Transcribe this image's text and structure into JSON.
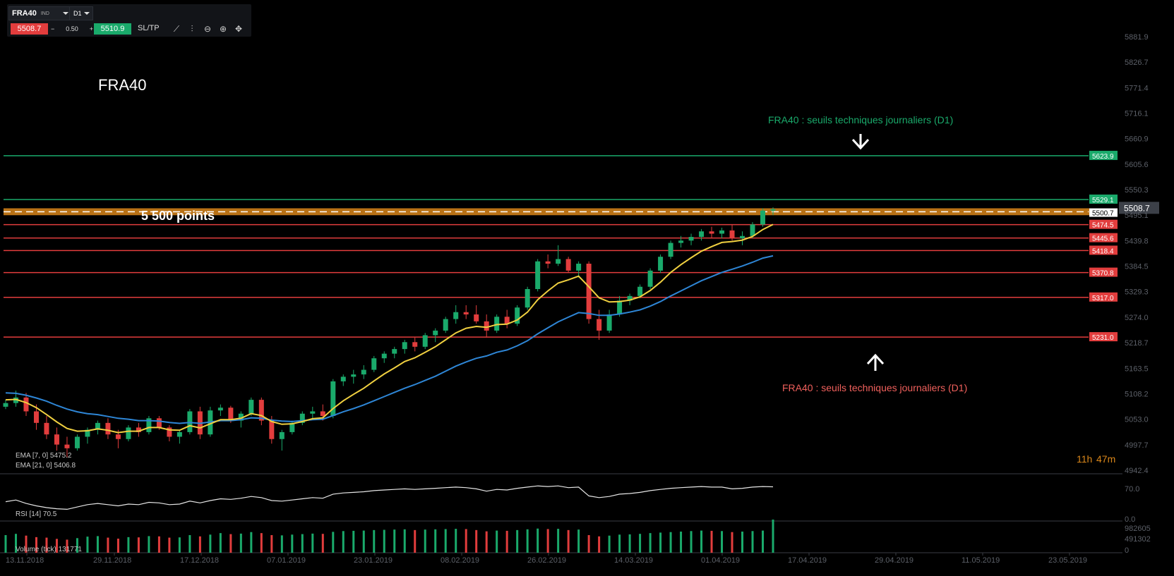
{
  "toolbar": {
    "symbol": "FRA40",
    "symbol_tag": "IND",
    "timeframe": "D1",
    "bid": "5508.7",
    "minus": "−",
    "lot": "0.50",
    "plus": "+",
    "ask": "5510.9",
    "sltp": "SL/TP",
    "icons": [
      "line-chart-icon",
      "candle-type-icon",
      "zoom-out-icon",
      "zoom-in-icon",
      "crosshair-icon"
    ]
  },
  "chart_title": "FRA40",
  "annotations": {
    "top_label": "FRA40 : seuils techniques journaliers (D1)",
    "bottom_label": "FRA40 : seuils techniques journaliers (D1)",
    "band_label": "5 500 points",
    "countdown_hours": "11h",
    "countdown_minutes": "47m",
    "colors": {
      "green": "#1aaa6b",
      "red": "#e23d3d",
      "orange": "#d9861a",
      "ema7": "#f0d040",
      "ema21": "#2e86d6"
    }
  },
  "indicators": {
    "ema7": "EMA [7, 0] 5475.2",
    "ema21": "EMA [21, 0] 5406.8",
    "rsi": "RSI [14] 70.5",
    "volume": "Volume (tick) 131771"
  },
  "chart_data": {
    "type": "candlestick",
    "price_axis": {
      "ticks": [
        "5881.9",
        "5826.7",
        "5771.4",
        "5716.1",
        "5660.9",
        "5605.6",
        "5550.3",
        "5495.1",
        "5439.8",
        "5384.5",
        "5329.3",
        "5274.0",
        "5218.7",
        "5163.5",
        "5108.2",
        "5053.0",
        "4997.7",
        "4942.4"
      ],
      "range": [
        4942.4,
        5881.9
      ]
    },
    "current_price": "5508.7",
    "levels": [
      {
        "value": 5623.9,
        "label": "5623.9",
        "color": "green"
      },
      {
        "value": 5529.1,
        "label": "5529.1",
        "color": "green"
      },
      {
        "value": 5500.7,
        "label": "5500.7",
        "color": "white"
      },
      {
        "value": 5474.5,
        "label": "5474.5",
        "color": "red"
      },
      {
        "value": 5445.6,
        "label": "5445.6",
        "color": "red"
      },
      {
        "value": 5418.4,
        "label": "5418.4",
        "color": "red"
      },
      {
        "value": 5370.8,
        "label": "5370.8",
        "color": "red"
      },
      {
        "value": 5317.0,
        "label": "5317.0",
        "color": "red"
      },
      {
        "value": 5231.0,
        "label": "5231.0",
        "color": "red"
      }
    ],
    "band": [
      5495,
      5510
    ],
    "date_axis": [
      "13.11.2018",
      "29.11.2018",
      "17.12.2018",
      "07.01.2019",
      "23.01.2019",
      "08.02.2019",
      "26.02.2019",
      "14.03.2019",
      "01.04.2019",
      "17.04.2019",
      "29.04.2019",
      "11.05.2019",
      "23.05.2019"
    ],
    "rsi_axis": [
      "70.0",
      "0.0"
    ],
    "volume_axis": [
      "982605",
      "491302",
      "0"
    ],
    "candles": [
      [
        5080,
        5095,
        5075,
        5088
      ],
      [
        5088,
        5115,
        5080,
        5100
      ],
      [
        5100,
        5110,
        5060,
        5070
      ],
      [
        5070,
        5085,
        5030,
        5045
      ],
      [
        5045,
        5060,
        5010,
        5020
      ],
      [
        5020,
        5035,
        4985,
        4998
      ],
      [
        4998,
        5015,
        4970,
        4990
      ],
      [
        4990,
        5020,
        4985,
        5015
      ],
      [
        5015,
        5035,
        5000,
        5030
      ],
      [
        5030,
        5050,
        5020,
        5045
      ],
      [
        5045,
        5055,
        5010,
        5020
      ],
      [
        5020,
        5030,
        4990,
        5010
      ],
      [
        5010,
        5040,
        5005,
        5035
      ],
      [
        5035,
        5045,
        5015,
        5025
      ],
      [
        5025,
        5060,
        5020,
        5055
      ],
      [
        5055,
        5060,
        5030,
        5035
      ],
      [
        5035,
        5040,
        5005,
        5015
      ],
      [
        5015,
        5030,
        5000,
        5025
      ],
      [
        5025,
        5075,
        5020,
        5070
      ],
      [
        5070,
        5080,
        5010,
        5020
      ],
      [
        5020,
        5080,
        5015,
        5072
      ],
      [
        5072,
        5085,
        5060,
        5078
      ],
      [
        5078,
        5082,
        5045,
        5050
      ],
      [
        5050,
        5070,
        5035,
        5065
      ],
      [
        5065,
        5100,
        5060,
        5095
      ],
      [
        5095,
        5100,
        5040,
        5050
      ],
      [
        5050,
        5060,
        5000,
        5010
      ],
      [
        5010,
        5030,
        4985,
        5025
      ],
      [
        5025,
        5050,
        5020,
        5045
      ],
      [
        5045,
        5070,
        5040,
        5065
      ],
      [
        5065,
        5080,
        5055,
        5070
      ],
      [
        5070,
        5085,
        5050,
        5060
      ],
      [
        5060,
        5140,
        5055,
        5135
      ],
      [
        5135,
        5150,
        5125,
        5145
      ],
      [
        5145,
        5160,
        5130,
        5150
      ],
      [
        5150,
        5170,
        5140,
        5160
      ],
      [
        5160,
        5190,
        5155,
        5185
      ],
      [
        5185,
        5200,
        5175,
        5195
      ],
      [
        5195,
        5210,
        5185,
        5205
      ],
      [
        5205,
        5225,
        5195,
        5220
      ],
      [
        5220,
        5230,
        5200,
        5210
      ],
      [
        5210,
        5240,
        5205,
        5235
      ],
      [
        5235,
        5250,
        5220,
        5245
      ],
      [
        5245,
        5275,
        5240,
        5270
      ],
      [
        5270,
        5300,
        5260,
        5285
      ],
      [
        5285,
        5300,
        5270,
        5280
      ],
      [
        5280,
        5300,
        5260,
        5265
      ],
      [
        5265,
        5280,
        5230,
        5245
      ],
      [
        5245,
        5280,
        5240,
        5275
      ],
      [
        5275,
        5290,
        5250,
        5260
      ],
      [
        5260,
        5300,
        5255,
        5295
      ],
      [
        5295,
        5340,
        5290,
        5335
      ],
      [
        5335,
        5400,
        5330,
        5395
      ],
      [
        5395,
        5410,
        5380,
        5390
      ],
      [
        5390,
        5430,
        5385,
        5400
      ],
      [
        5400,
        5405,
        5370,
        5375
      ],
      [
        5375,
        5395,
        5360,
        5390
      ],
      [
        5390,
        5395,
        5260,
        5270
      ],
      [
        5270,
        5290,
        5225,
        5245
      ],
      [
        5245,
        5290,
        5240,
        5280
      ],
      [
        5280,
        5320,
        5275,
        5310
      ],
      [
        5310,
        5325,
        5300,
        5320
      ],
      [
        5320,
        5345,
        5315,
        5340
      ],
      [
        5340,
        5380,
        5335,
        5375
      ],
      [
        5375,
        5410,
        5370,
        5405
      ],
      [
        5405,
        5440,
        5400,
        5435
      ],
      [
        5435,
        5450,
        5425,
        5440
      ],
      [
        5440,
        5455,
        5430,
        5448
      ],
      [
        5448,
        5465,
        5440,
        5460
      ],
      [
        5460,
        5470,
        5445,
        5455
      ],
      [
        5455,
        5468,
        5445,
        5462
      ],
      [
        5462,
        5475,
        5440,
        5445
      ],
      [
        5445,
        5460,
        5430,
        5450
      ],
      [
        5450,
        5480,
        5445,
        5475
      ],
      [
        5475,
        5510,
        5470,
        5505
      ],
      [
        5505,
        5512,
        5495,
        5508
      ]
    ],
    "ema7": [
      5095,
      5096,
      5089,
      5078,
      5063,
      5047,
      5033,
      5027,
      5028,
      5032,
      5029,
      5024,
      5027,
      5027,
      5035,
      5035,
      5030,
      5029,
      5039,
      5034,
      5043,
      5052,
      5052,
      5055,
      5065,
      5061,
      5048,
      5042,
      5043,
      5048,
      5054,
      5056,
      5076,
      5093,
      5107,
      5120,
      5136,
      5151,
      5164,
      5178,
      5186,
      5198,
      5210,
      5225,
      5240,
      5250,
      5254,
      5252,
      5258,
      5259,
      5268,
      5285,
      5312,
      5331,
      5348,
      5355,
      5363,
      5340,
      5316,
      5307,
      5308,
      5311,
      5318,
      5332,
      5350,
      5371,
      5388,
      5403,
      5417,
      5427,
      5436,
      5438,
      5441,
      5449,
      5464,
      5475
    ],
    "ema21": [
      5110,
      5109,
      5105,
      5099,
      5092,
      5083,
      5075,
      5069,
      5065,
      5063,
      5059,
      5055,
      5053,
      5050,
      5050,
      5049,
      5046,
      5044,
      5046,
      5044,
      5047,
      5050,
      5050,
      5052,
      5056,
      5055,
      5051,
      5049,
      5048,
      5050,
      5052,
      5053,
      5061,
      5069,
      5076,
      5084,
      5093,
      5102,
      5111,
      5120,
      5128,
      5137,
      5146,
      5157,
      5168,
      5177,
      5185,
      5190,
      5198,
      5203,
      5212,
      5223,
      5238,
      5251,
      5264,
      5274,
      5284,
      5282,
      5278,
      5278,
      5281,
      5285,
      5290,
      5298,
      5308,
      5320,
      5331,
      5342,
      5353,
      5362,
      5371,
      5378,
      5385,
      5393,
      5402,
      5407
    ],
    "rsi": [
      45,
      48,
      42,
      38,
      35,
      33,
      32,
      36,
      40,
      42,
      40,
      38,
      41,
      40,
      44,
      43,
      40,
      41,
      46,
      43,
      47,
      50,
      49,
      51,
      54,
      52,
      47,
      46,
      48,
      50,
      52,
      51,
      58,
      60,
      61,
      62,
      64,
      65,
      66,
      67,
      66,
      67,
      68,
      69,
      70,
      69,
      67,
      63,
      66,
      65,
      68,
      70,
      72,
      71,
      72,
      69,
      70,
      55,
      52,
      54,
      58,
      59,
      61,
      64,
      66,
      68,
      69,
      70,
      71,
      70,
      70,
      67,
      68,
      70,
      71,
      70.5
    ],
    "volume": [
      700,
      750,
      680,
      620,
      600,
      550,
      520,
      580,
      640,
      660,
      600,
      560,
      620,
      610,
      660,
      650,
      600,
      610,
      700,
      650,
      720,
      780,
      740,
      760,
      820,
      780,
      700,
      690,
      720,
      740,
      760,
      750,
      830,
      860,
      870,
      880,
      900,
      910,
      920,
      930,
      900,
      920,
      930,
      940,
      950,
      940,
      900,
      850,
      880,
      870,
      900,
      930,
      960,
      940,
      950,
      900,
      920,
      700,
      650,
      680,
      720,
      730,
      750,
      780,
      800,
      820,
      840,
      860,
      880,
      870,
      860,
      820,
      840,
      860,
      880,
      1317
    ]
  }
}
